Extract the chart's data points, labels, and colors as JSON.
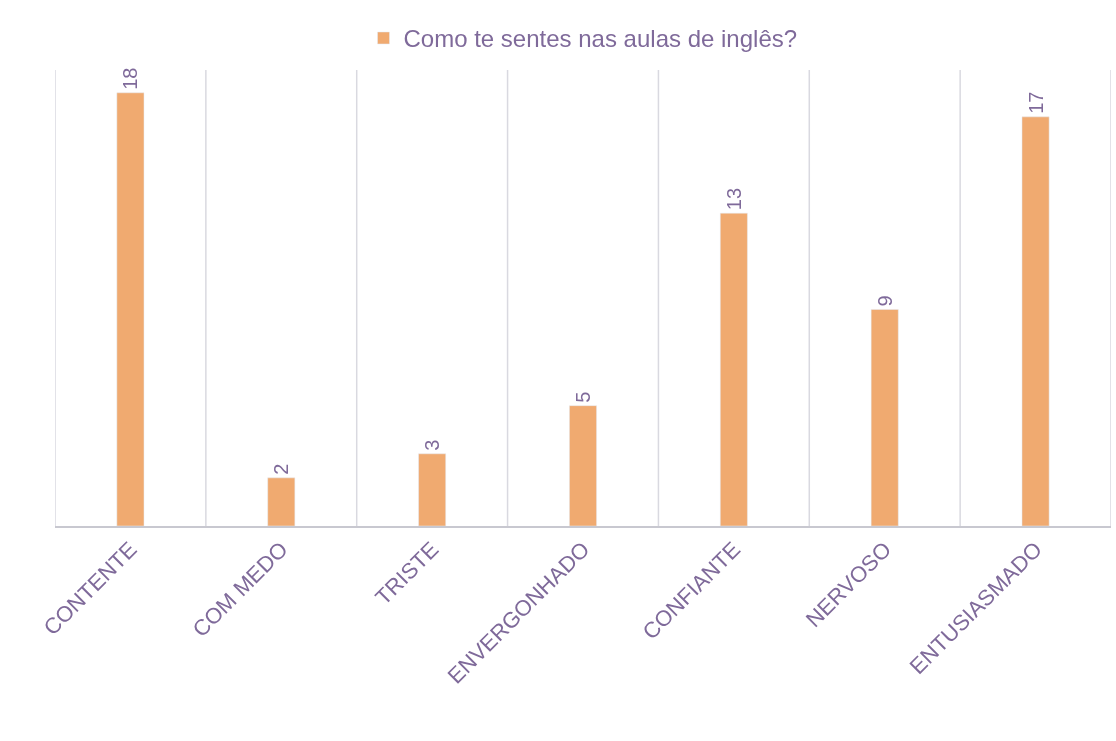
{
  "chart_data": {
    "type": "bar",
    "categories": [
      "CONTENTE",
      "COM MEDO",
      "TRISTE",
      "ENVERGONHADO",
      "CONFIANTE",
      "NERVOSO",
      "ENTUSIASMADO"
    ],
    "series": [
      {
        "name": "Como te sentes nas aulas de inglês?",
        "color": "#f0aa70",
        "values": [
          18,
          2,
          3,
          5,
          13,
          9,
          17
        ]
      }
    ],
    "data_labels": true,
    "grid": "x",
    "legend": "top"
  }
}
